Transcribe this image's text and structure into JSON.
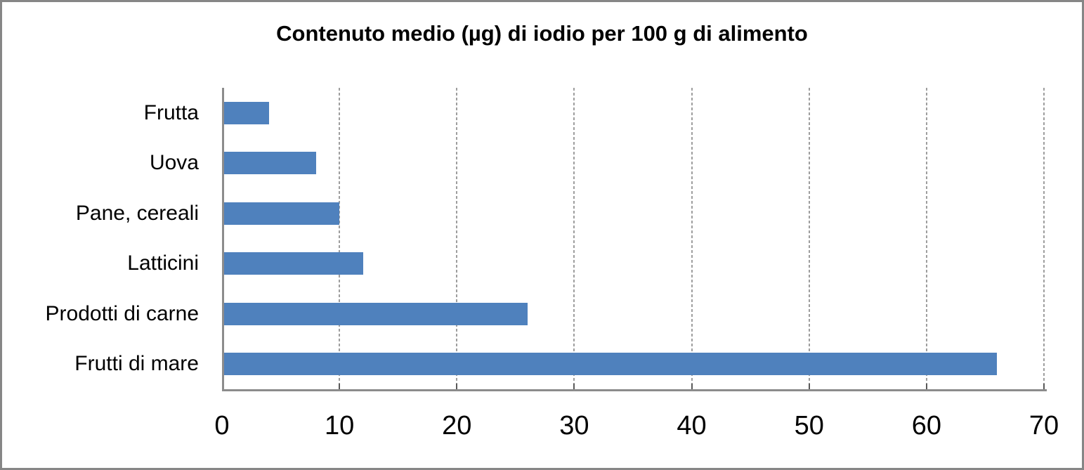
{
  "chart_data": {
    "type": "bar",
    "orientation": "horizontal",
    "title": "Contenuto medio (µg) di iodio per 100 g di alimento",
    "categories": [
      "Frutta",
      "Uova",
      "Pane, cereali",
      "Latticini",
      "Prodotti di carne",
      "Frutti di mare"
    ],
    "values": [
      4,
      8,
      10,
      12,
      26,
      66
    ],
    "xlabel": "",
    "ylabel": "",
    "xlim": [
      0,
      70
    ],
    "xticks": [
      0,
      10,
      20,
      30,
      40,
      50,
      60,
      70
    ],
    "grid": true,
    "legend": false
  },
  "colors": {
    "bar": "#4F81BD",
    "axis_line": "#8C8C8C",
    "gridline": "#9E9E9E",
    "tick_mark": "#595959",
    "frame_border": "#868686",
    "text": "#000000",
    "background": "#FFFFFF"
  }
}
